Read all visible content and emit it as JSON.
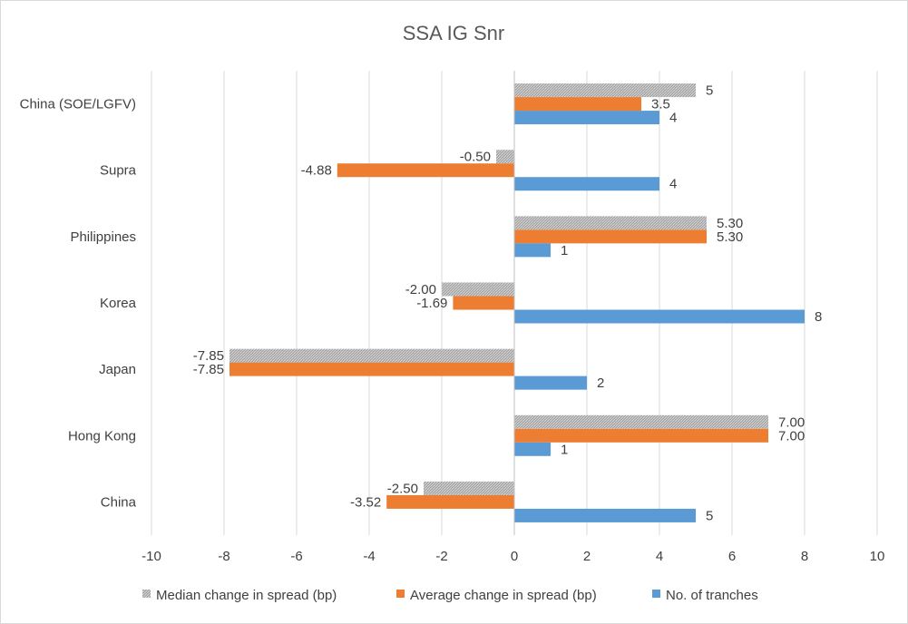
{
  "chart_data": {
    "type": "bar",
    "orientation": "horizontal",
    "title": "SSA IG Snr",
    "categories": [
      "China (SOE/LGFV)",
      "Supra",
      "Philippines",
      "Korea",
      "Japan",
      "Hong Kong",
      "China"
    ],
    "series": [
      {
        "name": "Median change in spread (bp)",
        "color": "#a5a5a5",
        "pattern": "hatched",
        "values": [
          5,
          -0.5,
          5.3,
          -2.0,
          -7.85,
          7.0,
          -2.5
        ],
        "labels": [
          "5",
          "-0.50",
          "5.30",
          "-2.00",
          "-7.85",
          "7.00",
          "-2.50"
        ]
      },
      {
        "name": "Average change in spread (bp)",
        "color": "#ed7d31",
        "values": [
          3.5,
          -4.88,
          5.3,
          -1.69,
          -7.85,
          7.0,
          -3.52
        ],
        "labels": [
          "3.5",
          "-4.88",
          "5.30",
          "-1.69",
          "-7.85",
          "7.00",
          "-3.52"
        ]
      },
      {
        "name": "No. of tranches",
        "color": "#5b9bd5",
        "values": [
          4,
          4,
          1,
          8,
          2,
          1,
          5
        ],
        "labels": [
          "4",
          "4",
          "1",
          "8",
          "2",
          "1",
          "5"
        ]
      }
    ],
    "xlim": [
      -10,
      10
    ],
    "xticks": [
      -10,
      -8,
      -6,
      -4,
      -2,
      0,
      2,
      4,
      6,
      8,
      10
    ],
    "xticklabels": [
      "-10",
      "-8",
      "-6",
      "-4",
      "-2",
      "0",
      "2",
      "4",
      "6",
      "8",
      "10"
    ],
    "grid": "vertical",
    "legend_position": "bottom"
  }
}
